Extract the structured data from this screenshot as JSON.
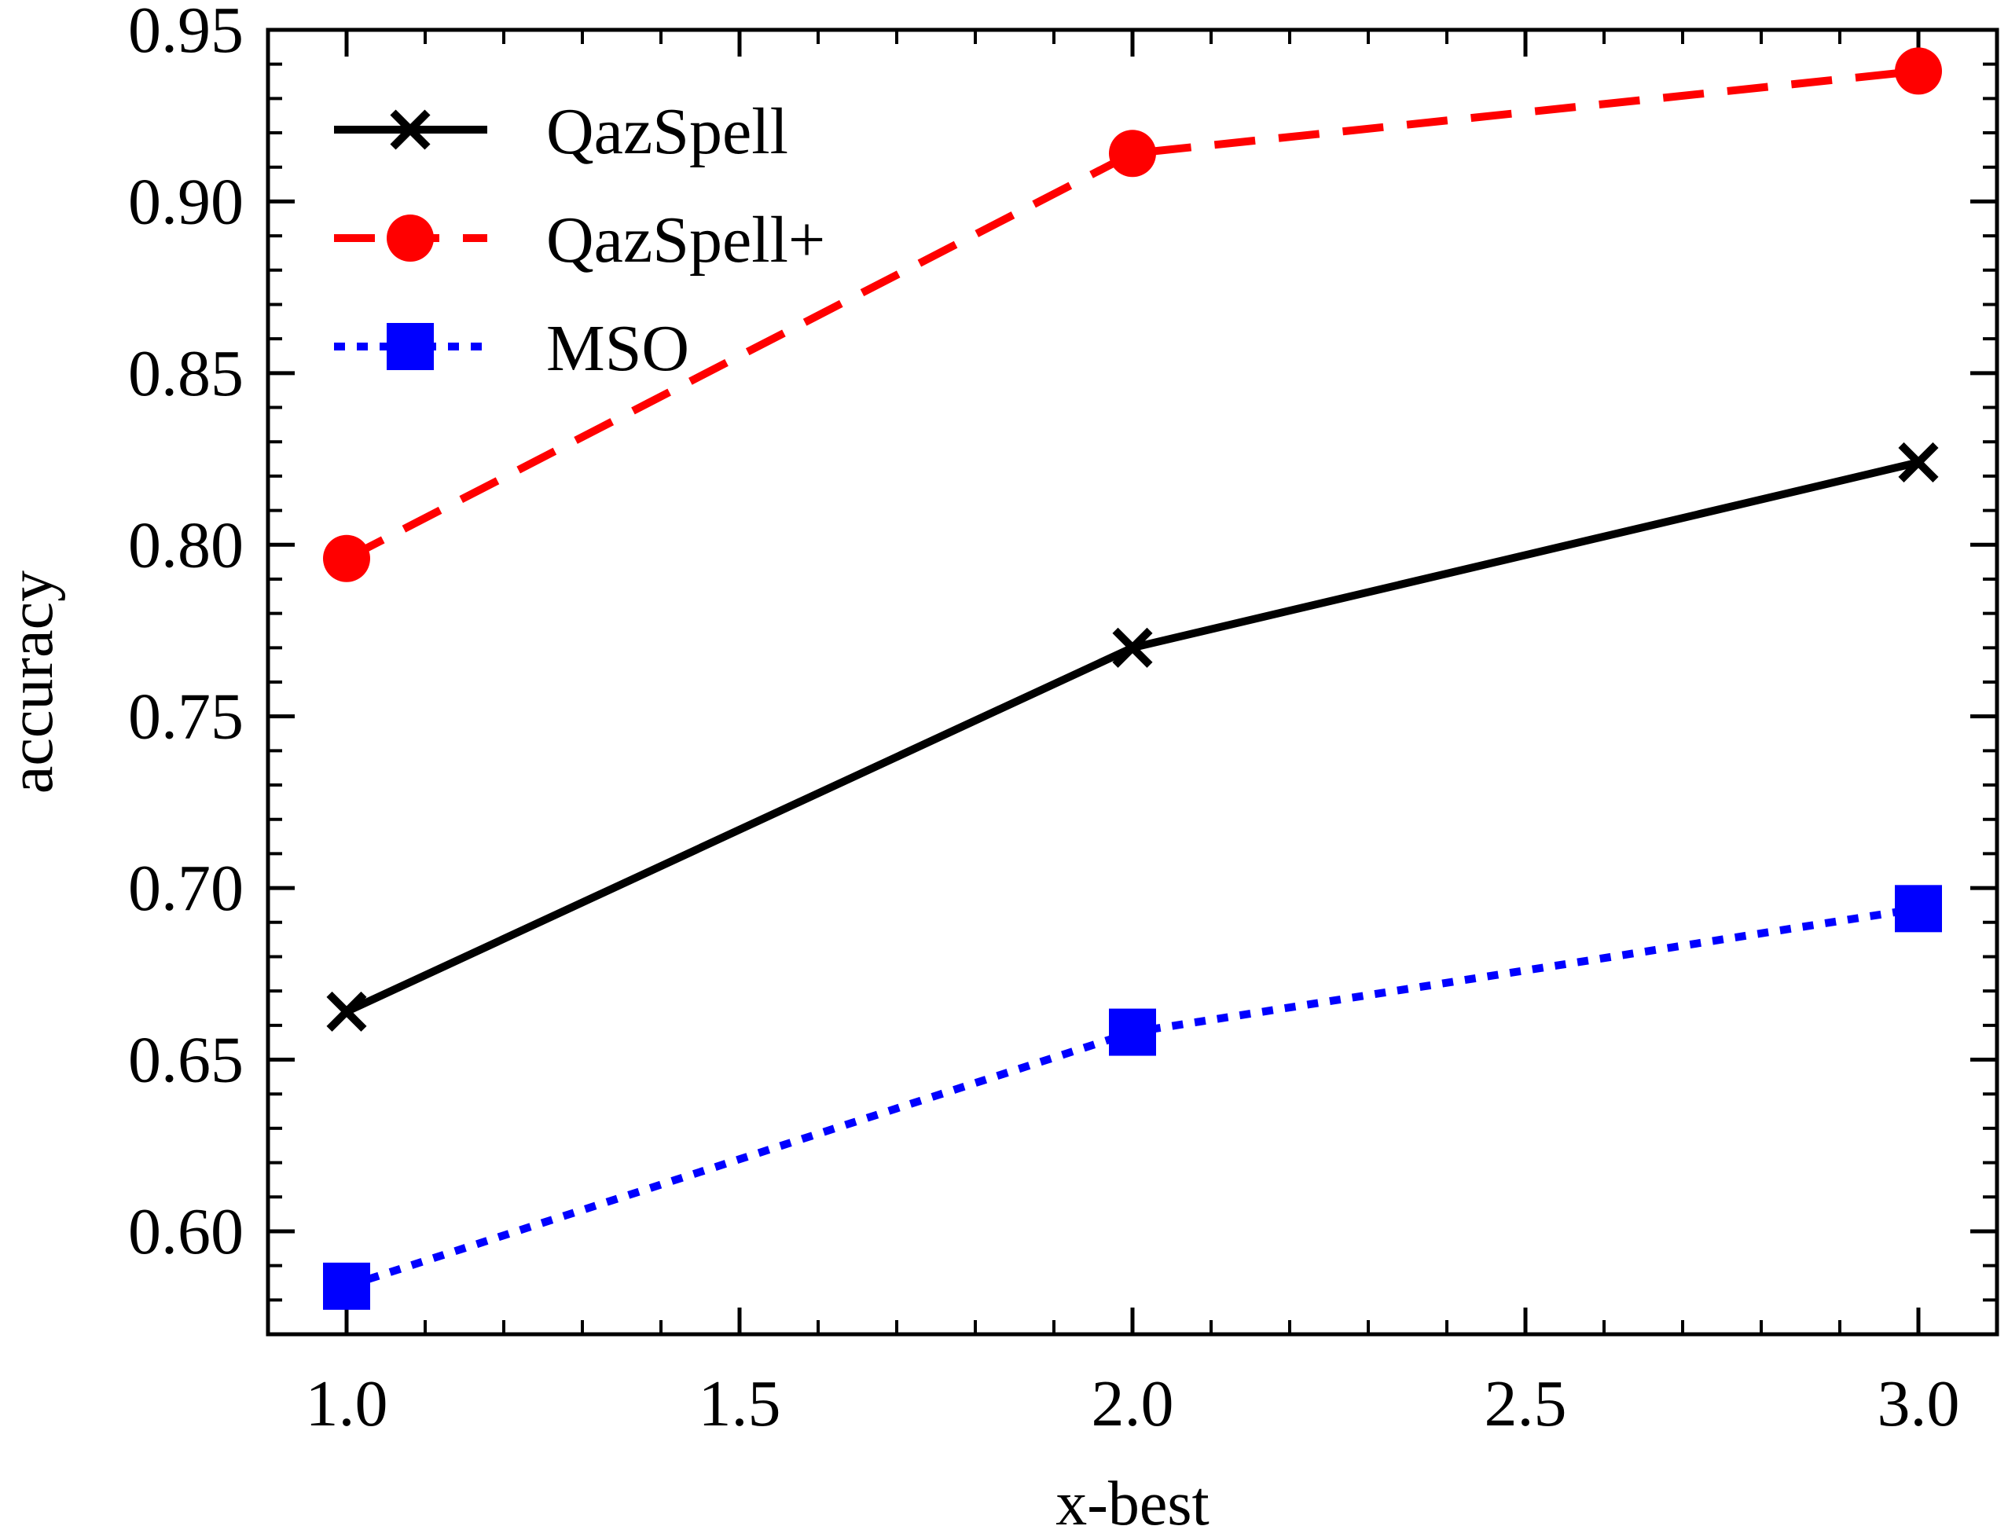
{
  "chart_data": {
    "type": "line",
    "title": "",
    "xlabel": "x-best",
    "ylabel": "accuracy",
    "xlim": [
      0.9,
      3.1
    ],
    "ylim": [
      0.57,
      0.95
    ],
    "x_ticks": [
      1.0,
      1.5,
      2.0,
      2.5,
      3.0
    ],
    "x_tick_labels": [
      "1.0",
      "1.5",
      "2.0",
      "2.5",
      "3.0"
    ],
    "y_ticks": [
      0.6,
      0.65,
      0.7,
      0.75,
      0.8,
      0.85,
      0.9,
      0.95
    ],
    "y_tick_labels": [
      "0.60",
      "0.65",
      "0.70",
      "0.75",
      "0.80",
      "0.85",
      "0.90",
      "0.95"
    ],
    "grid": false,
    "legend_position": "top-left",
    "x": [
      1.0,
      2.0,
      3.0
    ],
    "series": [
      {
        "name": "QazSpell",
        "values": [
          0.664,
          0.77,
          0.824
        ],
        "color": "#000000",
        "line_style": "solid",
        "marker": "x"
      },
      {
        "name": "QazSpell+",
        "values": [
          0.796,
          0.914,
          0.938
        ],
        "color": "#ff0000",
        "line_style": "dashed",
        "marker": "circle"
      },
      {
        "name": "MSO",
        "values": [
          0.584,
          0.658,
          0.694
        ],
        "color": "#0000ff",
        "line_style": "dotted",
        "marker": "square"
      }
    ]
  }
}
